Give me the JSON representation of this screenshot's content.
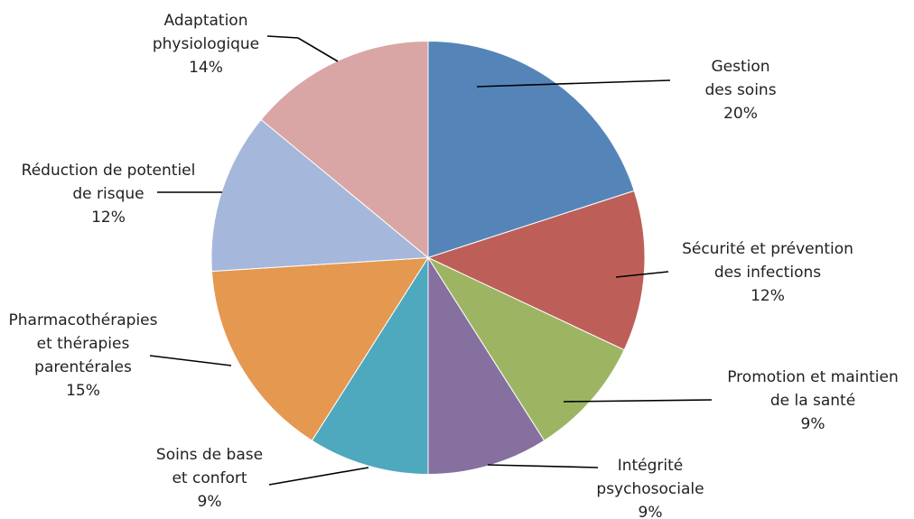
{
  "chart_data": {
    "type": "pie",
    "title": "",
    "start_angle_deg": 0,
    "direction": "clockwise",
    "slices": [
      {
        "lines": [
          "Gestion",
          "des soins"
        ],
        "value": 20,
        "label_value": "20%",
        "color": "#5585B8"
      },
      {
        "lines": [
          "Sécurité et prévention",
          "des infections"
        ],
        "value": 12,
        "label_value": "12%",
        "color": "#BD5F58"
      },
      {
        "lines": [
          "Promotion et maintien",
          "de la santé"
        ],
        "value": 9,
        "label_value": "9%",
        "color": "#9DB562"
      },
      {
        "lines": [
          "Intégrité",
          "psychosociale"
        ],
        "value": 9,
        "label_value": "9%",
        "color": "#8570A0"
      },
      {
        "lines": [
          "Soins de base",
          "et confort"
        ],
        "value": 9,
        "label_value": "9%",
        "color": "#4EA8BE"
      },
      {
        "lines": [
          "Pharmacothérapies",
          "et thérapies",
          "parentérales"
        ],
        "value": 15,
        "label_value": "15%",
        "color": "#E5984F"
      },
      {
        "lines": [
          "Réduction de potentiel",
          "de risque"
        ],
        "value": 12,
        "label_value": "12%",
        "color": "#A5B7DA"
      },
      {
        "lines": [
          "Adaptation",
          "physiologique"
        ],
        "value": 14,
        "label_value": "14%",
        "color": "#DAA6A5"
      }
    ]
  }
}
